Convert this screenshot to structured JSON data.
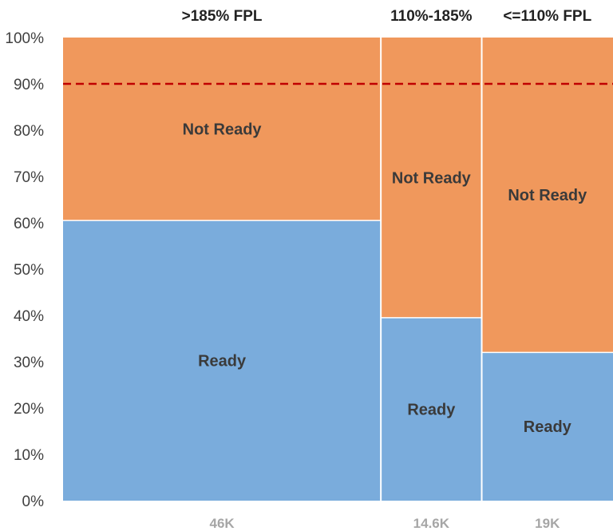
{
  "chart_data": {
    "type": "mekko",
    "y_axis": {
      "min": 0,
      "max": 100,
      "step": 10,
      "tick_labels": [
        "0%",
        "10%",
        "20%",
        "30%",
        "40%",
        "50%",
        "60%",
        "70%",
        "80%",
        "90%",
        "100%"
      ]
    },
    "categories": [
      {
        "name": ">185% FPL",
        "width_label": "46K",
        "width": 46000,
        "ready": 60.5,
        "not_ready": 39.5
      },
      {
        "name": "110%-185%",
        "width_label": "14.6K",
        "width": 14600,
        "ready": 39.5,
        "not_ready": 60.5
      },
      {
        "name": "<=110% FPL",
        "width_label": "19K",
        "width": 19000,
        "ready": 32,
        "not_ready": 68
      }
    ],
    "segments": [
      {
        "key": "ready",
        "label": "Ready",
        "color": "#7aacdc"
      },
      {
        "key": "not_ready",
        "label": "Not Ready",
        "color": "#f0985c"
      }
    ],
    "reference_line": {
      "value": 90,
      "color": "#c00000",
      "style": "dashed"
    },
    "grid": false,
    "legend": "none"
  }
}
